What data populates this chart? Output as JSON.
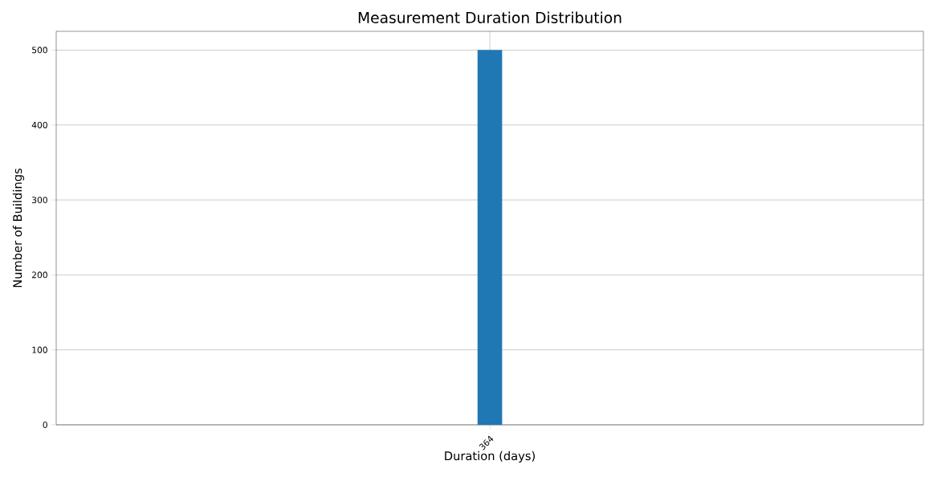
{
  "chart_data": {
    "type": "bar",
    "title": "Measurement Duration Distribution",
    "xlabel": "Duration (days)",
    "ylabel": "Number of Buildings",
    "categories": [
      "364"
    ],
    "values": [
      500
    ],
    "color": "#1f77b4",
    "ylim": [
      0,
      525
    ],
    "yticks": [
      0,
      100,
      200,
      300,
      400,
      500
    ],
    "grid": true
  }
}
